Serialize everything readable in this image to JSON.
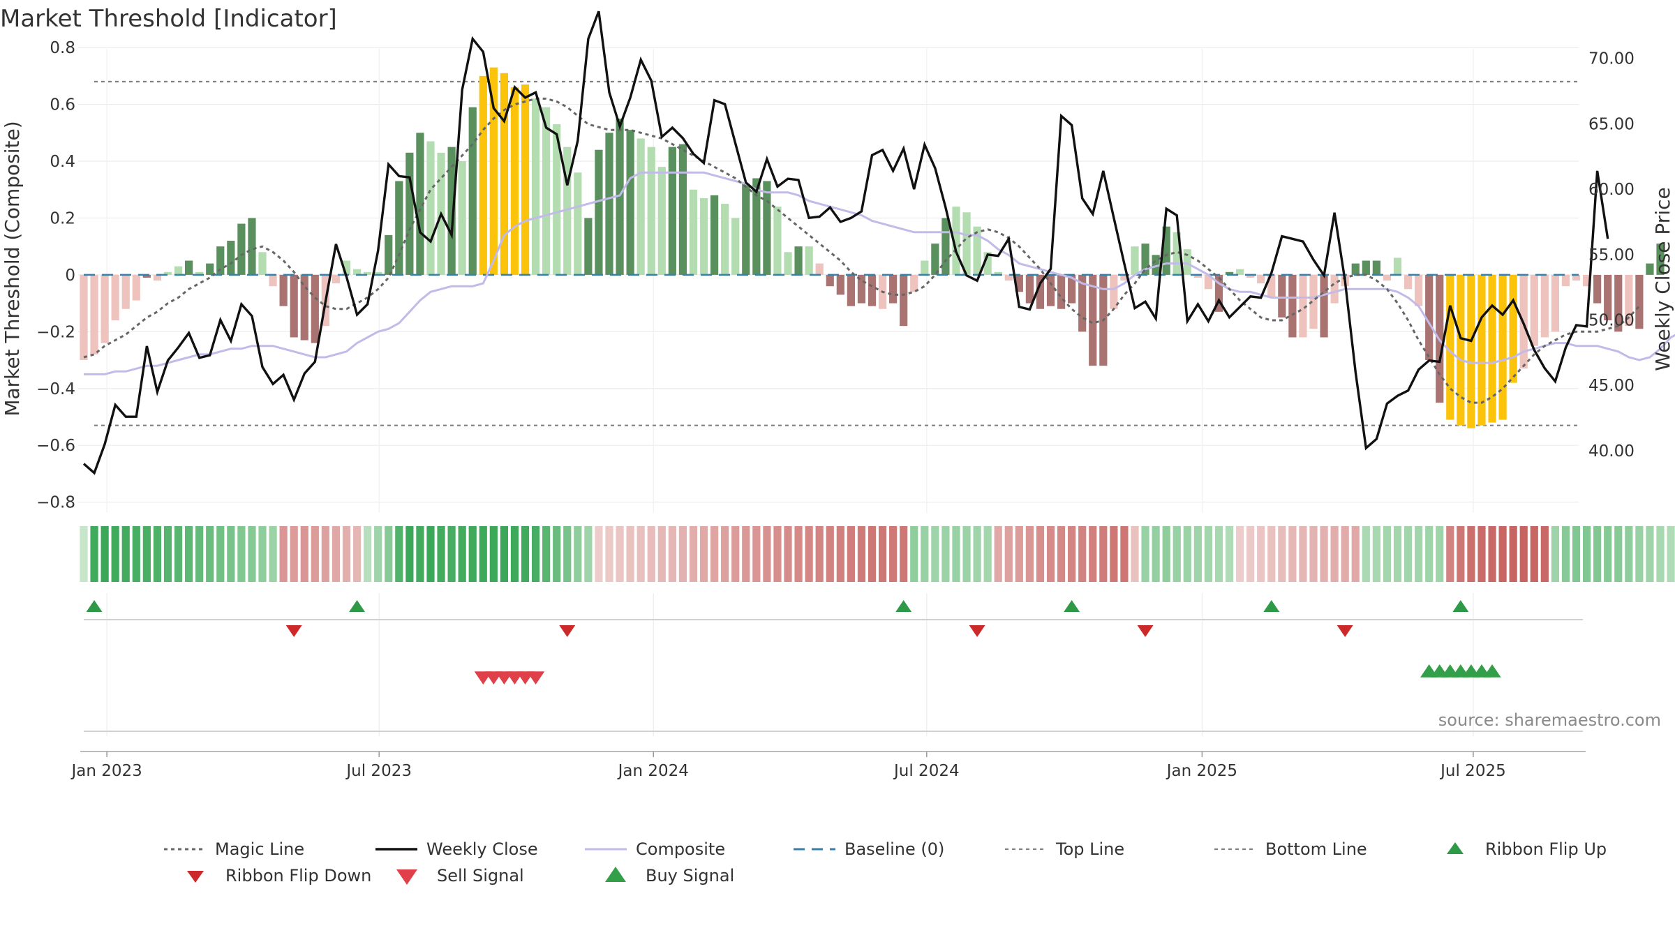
{
  "chart_data": {
    "type": "bar",
    "title": "Market Threshold [Indicator]",
    "ylabel": "Market Threshold (Composite)",
    "y2label": "Weekly Close Price",
    "source": "source: sharemaestro.com",
    "ylim": [
      -0.85,
      0.82
    ],
    "y2lim": [
      35.5,
      76.5
    ],
    "yticks": [
      {
        "v": 0.8,
        "label": "0.8"
      },
      {
        "v": 0.6,
        "label": "0.6"
      },
      {
        "v": 0.4,
        "label": "0.4"
      },
      {
        "v": 0.2,
        "label": "0.2"
      },
      {
        "v": 0,
        "label": "0"
      },
      {
        "v": -0.2,
        "label": "−0.2"
      },
      {
        "v": -0.4,
        "label": "−0.4"
      },
      {
        "v": -0.6,
        "label": "−0.6"
      },
      {
        "v": -0.8,
        "label": "−0.8"
      }
    ],
    "y2ticks": [
      {
        "v": 75,
        "label": "75.00"
      },
      {
        "v": 70,
        "label": "70.00"
      },
      {
        "v": 65,
        "label": "65.00"
      },
      {
        "v": 60,
        "label": "60.00"
      },
      {
        "v": 55,
        "label": "55.00"
      },
      {
        "v": 50,
        "label": "50.00"
      },
      {
        "v": 45,
        "label": "45.00"
      },
      {
        "v": 40,
        "label": "40.00"
      }
    ],
    "xticks": [
      {
        "w": 2.2,
        "label": "Jan 2023"
      },
      {
        "w": 28.1,
        "label": "Jul 2023"
      },
      {
        "w": 54.2,
        "label": "Jan 2024"
      },
      {
        "w": 80.2,
        "label": "Jul 2024"
      },
      {
        "w": 106.4,
        "label": "Jan 2025"
      },
      {
        "w": 132.2,
        "label": "Jul 2025"
      }
    ],
    "top_line": 0.68,
    "bottom_line": -0.53,
    "colors": {
      "strong_up": "#5a8f5e",
      "weak_up": "#b3dcb0",
      "strong_down": "#a87370",
      "weak_down": "#eec2bd",
      "extreme": "#fbc30a",
      "magic": "#666666",
      "close": "#111111",
      "composite": "#c2bae8",
      "baseline": "#3a7fa8",
      "ribbon_up": "#2e9a48",
      "ribbon_down": "#cc2a2a",
      "sell": "#e0404a",
      "buy": "#33a049"
    },
    "bar_values": [
      -0.3,
      -0.28,
      -0.24,
      -0.16,
      -0.12,
      -0.09,
      -0.01,
      -0.02,
      0.01,
      0.03,
      0.05,
      0.01,
      0.04,
      0.1,
      0.12,
      0.18,
      0.2,
      0.08,
      -0.04,
      -0.11,
      -0.22,
      -0.23,
      -0.24,
      -0.18,
      -0.03,
      0.05,
      0.02,
      0.01,
      0.01,
      0.14,
      0.33,
      0.43,
      0.5,
      0.47,
      0.43,
      0.45,
      0.4,
      0.59,
      0.7,
      0.73,
      0.71,
      0.66,
      0.67,
      0.62,
      0.59,
      0.53,
      0.45,
      0.36,
      0.2,
      0.44,
      0.5,
      0.55,
      0.51,
      0.48,
      0.45,
      0.38,
      0.45,
      0.46,
      0.3,
      0.27,
      0.28,
      0.25,
      0.2,
      0.32,
      0.34,
      0.33,
      0.24,
      0.08,
      0.1,
      0.1,
      0.04,
      -0.04,
      -0.07,
      -0.11,
      -0.1,
      -0.11,
      -0.12,
      -0.1,
      -0.18,
      -0.06,
      0.05,
      0.11,
      0.2,
      0.24,
      0.22,
      0.17,
      0.08,
      0.01,
      -0.02,
      -0.06,
      -0.1,
      -0.12,
      -0.11,
      -0.12,
      -0.1,
      -0.2,
      -0.32,
      -0.32,
      -0.12,
      -0.02,
      0.1,
      0.11,
      0.07,
      0.17,
      0.15,
      0.09,
      -0.01,
      -0.05,
      -0.13,
      0.01,
      0.02,
      -0.01,
      -0.03,
      -0.08,
      -0.15,
      -0.22,
      -0.22,
      -0.19,
      -0.22,
      -0.1,
      -0.04,
      0.04,
      0.05,
      0.05,
      -0.02,
      0.06,
      -0.05,
      -0.11,
      -0.3,
      -0.45,
      -0.51,
      -0.53,
      -0.54,
      -0.53,
      -0.52,
      -0.51,
      -0.38,
      -0.33,
      -0.25,
      -0.22,
      -0.2,
      -0.04,
      -0.02,
      -0.04,
      -0.1,
      -0.16,
      -0.2,
      -0.18,
      -0.19,
      0.04,
      0.11
    ],
    "bar_colors": [
      "wd",
      "wd",
      "wd",
      "wd",
      "wd",
      "wd",
      "sd",
      "wd",
      "wu",
      "wu",
      "su",
      "wu",
      "su",
      "su",
      "su",
      "su",
      "su",
      "wu",
      "wd",
      "sd",
      "sd",
      "sd",
      "sd",
      "wd",
      "wd",
      "wu",
      "wu",
      "wu",
      "wu",
      "su",
      "su",
      "su",
      "su",
      "wu",
      "wu",
      "su",
      "wu",
      "su",
      "ex",
      "ex",
      "ex",
      "ex",
      "ex",
      "wu",
      "wu",
      "wu",
      "wu",
      "wu",
      "su",
      "su",
      "su",
      "su",
      "su",
      "wu",
      "wu",
      "wu",
      "su",
      "su",
      "wu",
      "wu",
      "su",
      "wu",
      "wu",
      "su",
      "su",
      "su",
      "wu",
      "wu",
      "su",
      "wu",
      "wd",
      "sd",
      "sd",
      "sd",
      "sd",
      "sd",
      "wd",
      "sd",
      "sd",
      "wd",
      "wu",
      "su",
      "su",
      "wu",
      "wu",
      "wu",
      "wu",
      "wu",
      "wd",
      "sd",
      "sd",
      "sd",
      "sd",
      "sd",
      "sd",
      "sd",
      "sd",
      "sd",
      "wd",
      "wd",
      "wu",
      "su",
      "su",
      "su",
      "wu",
      "wu",
      "wd",
      "wd",
      "sd",
      "su",
      "wu",
      "wd",
      "wd",
      "wd",
      "sd",
      "sd",
      "wd",
      "wd",
      "sd",
      "wd",
      "wd",
      "su",
      "su",
      "su",
      "wd",
      "wu",
      "wd",
      "wd",
      "sd",
      "sd",
      "ex",
      "ex",
      "ex",
      "ex",
      "ex",
      "ex",
      "ex",
      "wd",
      "wd",
      "wd",
      "wd",
      "wd",
      "wd",
      "wd",
      "sd",
      "sd",
      "sd",
      "wd",
      "sd",
      "su",
      "su"
    ],
    "close": [
      39.0,
      38.3,
      40.5,
      43.5,
      42.6,
      42.6,
      48.0,
      44.5,
      46.9,
      47.9,
      49.0,
      47.1,
      47.3,
      50.0,
      48.4,
      51.2,
      50.3,
      46.4,
      45.1,
      45.8,
      43.9,
      45.9,
      46.8,
      51.4,
      55.8,
      53.3,
      50.4,
      51.2,
      55.3,
      61.9,
      61.0,
      60.9,
      56.7,
      56.0,
      58.1,
      56.5,
      67.6,
      71.5,
      70.5,
      66.2,
      65.2,
      67.8,
      67.0,
      67.4,
      64.7,
      64.2,
      60.3,
      63.7,
      71.5,
      73.6,
      67.4,
      64.8,
      67.0,
      69.9,
      68.3,
      64.0,
      64.7,
      63.9,
      62.7,
      62.0,
      66.8,
      66.5,
      63.5,
      60.5,
      59.8,
      62.3,
      60.2,
      60.8,
      60.7,
      57.8,
      57.9,
      58.6,
      57.5,
      57.8,
      58.3,
      62.6,
      63.0,
      61.4,
      63.1,
      60.0,
      63.4,
      61.6,
      58.6,
      55.2,
      53.4,
      53.0,
      55.0,
      54.9,
      56.2,
      51.0,
      50.8,
      52.8,
      53.9,
      65.6,
      64.9,
      59.3,
      58.1,
      61.4,
      57.8,
      54.3,
      50.9,
      51.4,
      50.1,
      58.5,
      58.0,
      49.9,
      51.2,
      49.9,
      51.5,
      50.2,
      51.0,
      51.8,
      51.7,
      53.6,
      56.4,
      56.2,
      56.0,
      54.6,
      53.4,
      58.2,
      53.0,
      46.0,
      40.2,
      40.9,
      43.6,
      44.2,
      44.6,
      46.2,
      46.9,
      46.8,
      51.1,
      48.6,
      48.4,
      50.2,
      51.1,
      50.4,
      51.5,
      49.7,
      47.7,
      46.3,
      45.3,
      47.9,
      49.6,
      49.5,
      61.4,
      56.2
    ],
    "magic": [
      -0.29,
      -0.28,
      -0.25,
      -0.23,
      -0.21,
      -0.18,
      -0.15,
      -0.13,
      -0.1,
      -0.08,
      -0.05,
      -0.03,
      -0.01,
      0.02,
      0.04,
      0.07,
      0.09,
      0.1,
      0.08,
      0.05,
      0.01,
      -0.04,
      -0.08,
      -0.11,
      -0.12,
      -0.12,
      -0.1,
      -0.08,
      -0.05,
      -0.01,
      0.07,
      0.16,
      0.23,
      0.3,
      0.34,
      0.38,
      0.42,
      0.46,
      0.51,
      0.55,
      0.58,
      0.6,
      0.61,
      0.62,
      0.62,
      0.61,
      0.59,
      0.56,
      0.53,
      0.52,
      0.51,
      0.51,
      0.51,
      0.5,
      0.49,
      0.48,
      0.46,
      0.44,
      0.42,
      0.4,
      0.38,
      0.36,
      0.34,
      0.31,
      0.28,
      0.26,
      0.23,
      0.2,
      0.17,
      0.14,
      0.11,
      0.08,
      0.05,
      0.01,
      -0.02,
      -0.04,
      -0.06,
      -0.07,
      -0.07,
      -0.06,
      -0.04,
      0.0,
      0.05,
      0.09,
      0.13,
      0.15,
      0.16,
      0.15,
      0.13,
      0.1,
      0.06,
      0.02,
      -0.03,
      -0.08,
      -0.12,
      -0.15,
      -0.17,
      -0.16,
      -0.12,
      -0.07,
      -0.03,
      0.02,
      0.05,
      0.07,
      0.08,
      0.07,
      0.05,
      0.02,
      -0.01,
      -0.05,
      -0.09,
      -0.12,
      -0.15,
      -0.16,
      -0.16,
      -0.14,
      -0.12,
      -0.09,
      -0.06,
      -0.03,
      -0.01,
      0.0,
      0.0,
      -0.02,
      -0.05,
      -0.1,
      -0.16,
      -0.23,
      -0.29,
      -0.35,
      -0.4,
      -0.43,
      -0.45,
      -0.45,
      -0.43,
      -0.4,
      -0.36,
      -0.32,
      -0.28,
      -0.25,
      -0.23,
      -0.21,
      -0.2,
      -0.2,
      -0.2,
      -0.19,
      -0.18,
      -0.15,
      -0.11
    ],
    "composite": [
      -0.35,
      -0.35,
      -0.35,
      -0.34,
      -0.34,
      -0.33,
      -0.32,
      -0.32,
      -0.31,
      -0.3,
      -0.29,
      -0.28,
      -0.28,
      -0.27,
      -0.26,
      -0.26,
      -0.25,
      -0.25,
      -0.25,
      -0.26,
      -0.27,
      -0.28,
      -0.29,
      -0.29,
      -0.28,
      -0.27,
      -0.24,
      -0.22,
      -0.2,
      -0.19,
      -0.17,
      -0.13,
      -0.09,
      -0.06,
      -0.05,
      -0.04,
      -0.04,
      -0.04,
      -0.03,
      0.05,
      0.14,
      0.17,
      0.19,
      0.2,
      0.21,
      0.22,
      0.23,
      0.24,
      0.25,
      0.26,
      0.27,
      0.28,
      0.34,
      0.36,
      0.36,
      0.36,
      0.36,
      0.36,
      0.36,
      0.36,
      0.35,
      0.34,
      0.33,
      0.32,
      0.3,
      0.29,
      0.29,
      0.29,
      0.28,
      0.26,
      0.25,
      0.24,
      0.23,
      0.22,
      0.21,
      0.19,
      0.18,
      0.17,
      0.16,
      0.15,
      0.15,
      0.15,
      0.15,
      0.15,
      0.14,
      0.14,
      0.12,
      0.09,
      0.07,
      0.04,
      0.03,
      0.02,
      0.01,
      0.0,
      -0.01,
      -0.03,
      -0.04,
      -0.05,
      -0.05,
      -0.03,
      0.0,
      0.02,
      0.03,
      0.04,
      0.04,
      0.04,
      0.02,
      0.0,
      -0.03,
      -0.05,
      -0.06,
      -0.06,
      -0.07,
      -0.08,
      -0.08,
      -0.08,
      -0.08,
      -0.08,
      -0.07,
      -0.06,
      -0.05,
      -0.05,
      -0.05,
      -0.05,
      -0.05,
      -0.06,
      -0.08,
      -0.11,
      -0.17,
      -0.23,
      -0.27,
      -0.3,
      -0.31,
      -0.31,
      -0.31,
      -0.3,
      -0.29,
      -0.27,
      -0.26,
      -0.25,
      -0.24,
      -0.24,
      -0.25,
      -0.25,
      -0.25,
      -0.26,
      -0.27,
      -0.29,
      -0.3,
      -0.29,
      -0.26,
      -0.22,
      -0.2
    ],
    "ribbon": [
      0.1,
      0.96,
      1.0,
      0.96,
      0.95,
      0.91,
      0.9,
      0.87,
      0.82,
      0.8,
      0.77,
      0.73,
      0.69,
      0.65,
      0.6,
      0.55,
      0.52,
      0.46,
      0.38,
      -0.55,
      -0.5,
      -0.55,
      -0.5,
      -0.45,
      -0.4,
      -0.35,
      -0.3,
      0.2,
      0.35,
      0.5,
      0.85,
      1.0,
      0.95,
      1.0,
      0.95,
      0.92,
      0.95,
      0.97,
      0.98,
      0.99,
      1.0,
      0.98,
      0.96,
      0.92,
      0.8,
      0.7,
      0.6,
      0.45,
      0.35,
      -0.12,
      -0.15,
      -0.18,
      -0.2,
      -0.22,
      -0.25,
      -0.28,
      -0.3,
      -0.33,
      -0.36,
      -0.4,
      -0.43,
      -0.46,
      -0.5,
      -0.53,
      -0.55,
      -0.58,
      -0.6,
      -0.62,
      -0.64,
      -0.66,
      -0.68,
      -0.7,
      -0.72,
      -0.74,
      -0.76,
      -0.78,
      -0.78,
      -0.77,
      -0.78,
      0.45,
      0.4,
      0.35,
      0.38,
      0.4,
      0.38,
      0.35,
      0.32,
      -0.4,
      -0.45,
      -0.5,
      -0.55,
      -0.6,
      -0.63,
      -0.65,
      -0.68,
      -0.7,
      -0.72,
      -0.75,
      -0.78,
      -0.8,
      -0.2,
      0.4,
      0.42,
      0.45,
      0.4,
      0.38,
      0.35,
      0.33,
      0.3,
      0.25,
      -0.12,
      -0.15,
      -0.18,
      -0.2,
      -0.24,
      -0.28,
      -0.3,
      -0.32,
      -0.34,
      -0.36,
      -0.38,
      -0.4,
      0.28,
      0.3,
      0.32,
      0.33,
      0.34,
      0.34,
      0.35,
      0.36,
      -0.7,
      -0.8,
      -0.85,
      -0.88,
      -0.9,
      -0.92,
      -0.93,
      -0.94,
      -0.92,
      -0.9,
      0.35,
      0.5,
      0.55,
      0.55,
      0.55,
      0.52,
      0.5,
      0.45,
      0.4,
      0.35,
      0.3,
      0.25,
      0.55
    ],
    "ribbon_flip_up": [
      1,
      26,
      78,
      94,
      113,
      131
    ],
    "ribbon_flip_down": [
      20,
      46,
      85,
      101,
      120
    ],
    "sell_signals": [
      38,
      39,
      40,
      41,
      42,
      43
    ],
    "buy_signals": [
      128,
      129,
      130,
      131,
      132,
      133,
      134
    ],
    "legend": [
      {
        "key": "magic",
        "label": "Magic Line"
      },
      {
        "key": "close",
        "label": "Weekly Close"
      },
      {
        "key": "composite",
        "label": "Composite"
      },
      {
        "key": "baseline",
        "label": "Baseline (0)"
      },
      {
        "key": "top",
        "label": "Top Line"
      },
      {
        "key": "bottom",
        "label": "Bottom Line"
      },
      {
        "key": "flipup",
        "label": "Ribbon Flip Up"
      },
      {
        "key": "flipdown",
        "label": "Ribbon Flip Down"
      },
      {
        "key": "sell",
        "label": "Sell Signal"
      },
      {
        "key": "buy",
        "label": "Buy Signal"
      }
    ]
  }
}
